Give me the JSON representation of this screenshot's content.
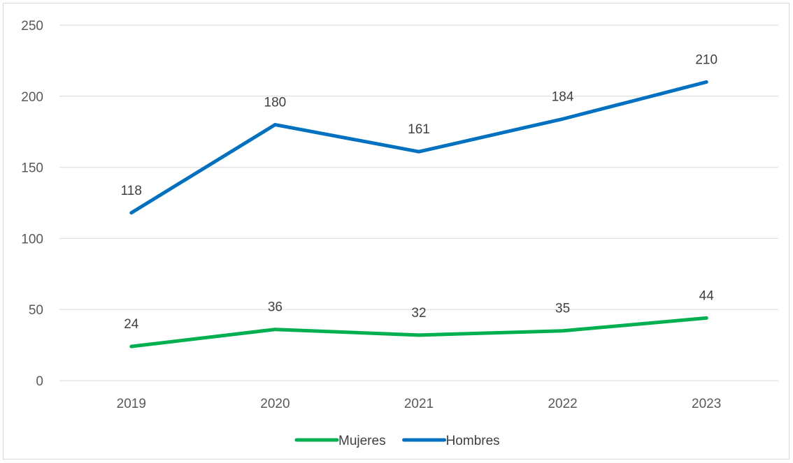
{
  "chart_data": {
    "type": "line",
    "categories": [
      "2019",
      "2020",
      "2021",
      "2022",
      "2023"
    ],
    "ylim": [
      0,
      250
    ],
    "yticks": [
      0,
      50,
      100,
      150,
      200,
      250
    ],
    "grid": true,
    "legend_position": "bottom",
    "series": [
      {
        "name": "Mujeres",
        "color": "#00b050",
        "values": [
          24,
          36,
          32,
          35,
          44
        ]
      },
      {
        "name": "Hombres",
        "color": "#0070c0",
        "values": [
          118,
          180,
          161,
          184,
          210
        ]
      }
    ]
  }
}
